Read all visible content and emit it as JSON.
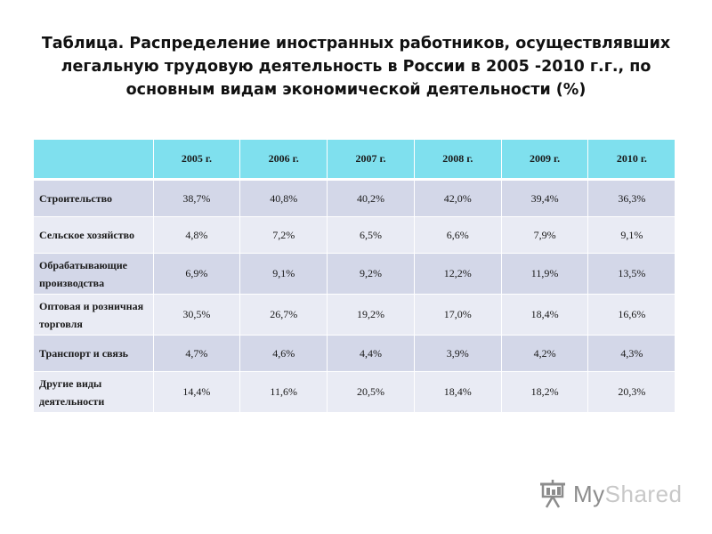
{
  "title": {
    "line1": "Таблица. Распределение иностранных работников, осуществлявших",
    "line2": "легальную трудовую деятельность в России в 2005 -2010 г.г., по",
    "line3": "основным видам экономической деятельности (%)"
  },
  "table": {
    "headers": [
      "",
      "2005 г.",
      "2006 г.",
      "2007 г.",
      "2008 г.",
      "2009 г.",
      "2010 г."
    ],
    "rows": [
      {
        "label": "Строительство",
        "values": [
          "38,7%",
          "40,8%",
          "40,2%",
          "42,0%",
          "39,4%",
          "36,3%"
        ]
      },
      {
        "label": "Сельское хозяйство",
        "values": [
          "4,8%",
          "7,2%",
          "6,5%",
          "6,6%",
          "7,9%",
          "9,1%"
        ]
      },
      {
        "label": "Обрабатывающие производства",
        "values": [
          "6,9%",
          "9,1%",
          "9,2%",
          "12,2%",
          "11,9%",
          "13,5%"
        ]
      },
      {
        "label": "Оптовая и розничная торговля",
        "values": [
          "30,5%",
          "26,7%",
          "19,2%",
          "17,0%",
          "18,4%",
          "16,6%"
        ]
      },
      {
        "label": "Транспорт и связь",
        "values": [
          "4,7%",
          "4,6%",
          "4,4%",
          "3,9%",
          "4,2%",
          "4,3%"
        ]
      },
      {
        "label": "Другие виды деятельности",
        "values": [
          "14,4%",
          "11,6%",
          "20,5%",
          "18,4%",
          "18,2%",
          "20,3%"
        ]
      }
    ]
  },
  "watermark": {
    "text_my": "My",
    "text_shared": "Shared",
    "icon": "presentation-board-icon",
    "color": "#8c8c8c"
  }
}
